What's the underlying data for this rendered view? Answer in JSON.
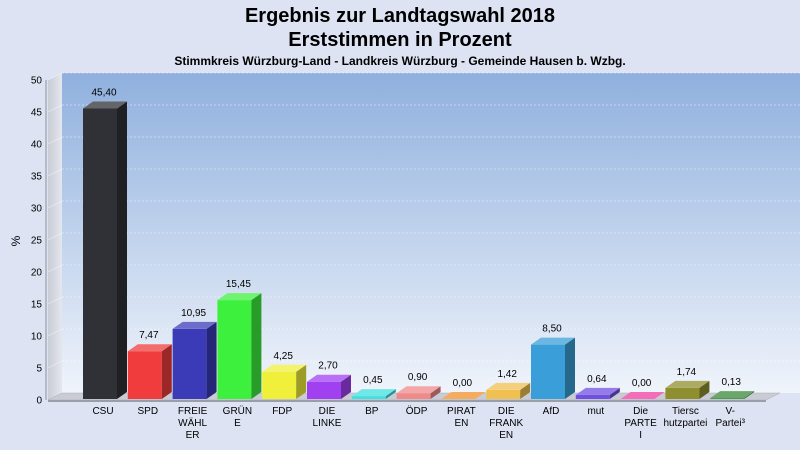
{
  "chart_data": {
    "type": "bar",
    "title": "Ergebnis zur Landtagswahl 2018",
    "subtitle_line2": "Erststimmen in Prozent",
    "subtitle": "Stimmkreis Würzburg-Land - Landkreis Würzburg - Gemeinde Hausen b. Wzbg.",
    "ylabel": "%",
    "ylim": [
      0,
      50
    ],
    "yticks": [
      0,
      5,
      10,
      15,
      20,
      25,
      30,
      35,
      40,
      45,
      50
    ],
    "grid": true,
    "bars": [
      {
        "label": [
          "CSU"
        ],
        "value": 45.4,
        "value_label": "45,40",
        "color": "#2f3136"
      },
      {
        "label": [
          "SPD"
        ],
        "value": 7.47,
        "value_label": "7,47",
        "color": "#f03c3c"
      },
      {
        "label": [
          "FREIE",
          "WÄHL",
          "ER"
        ],
        "value": 10.95,
        "value_label": "10,95",
        "color": "#3b3bb8"
      },
      {
        "label": [
          "GRÜN",
          "E"
        ],
        "value": 15.45,
        "value_label": "15,45",
        "color": "#3ef03e"
      },
      {
        "label": [
          "FDP"
        ],
        "value": 4.25,
        "value_label": "4,25",
        "color": "#f0f03a"
      },
      {
        "label": [
          "DIE",
          "LINKE"
        ],
        "value": 2.7,
        "value_label": "2,70",
        "color": "#a040f0"
      },
      {
        "label": [
          "BP"
        ],
        "value": 0.45,
        "value_label": "0,45",
        "color": "#40e0e0"
      },
      {
        "label": [
          "ÖDP"
        ],
        "value": 0.9,
        "value_label": "0,90",
        "color": "#f08a8a"
      },
      {
        "label": [
          "PIRAT",
          "EN"
        ],
        "value": 0.0,
        "value_label": "0,00",
        "color": "#f0902a"
      },
      {
        "label": [
          "DIE",
          "FRANK",
          "EN"
        ],
        "value": 1.42,
        "value_label": "1,42",
        "color": "#f0c050"
      },
      {
        "label": [
          "AfD"
        ],
        "value": 8.5,
        "value_label": "8,50",
        "color": "#3a9fd8"
      },
      {
        "label": [
          "mut"
        ],
        "value": 0.64,
        "value_label": "0,64",
        "color": "#7050e0"
      },
      {
        "label": [
          "Die",
          "PARTE",
          "I"
        ],
        "value": 0.0,
        "value_label": "0,00",
        "color": "#f03ca0"
      },
      {
        "label": [
          "Tiersc",
          "hutzpartei"
        ],
        "value": 1.74,
        "value_label": "1,74",
        "color": "#8f8f30"
      },
      {
        "label": [
          "V-",
          "Partei³"
        ],
        "value": 0.13,
        "value_label": "0,13",
        "color": "#3a8a3a"
      }
    ]
  }
}
